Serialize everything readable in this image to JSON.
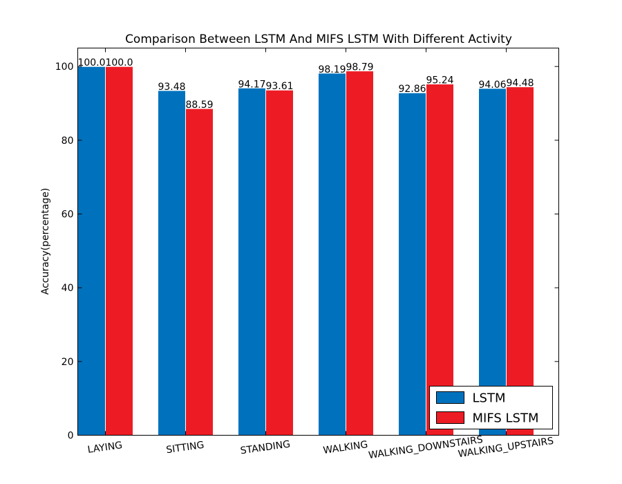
{
  "chart_data": {
    "type": "bar",
    "title": "Comparison Between LSTM And MIFS LSTM With Different Activity",
    "xlabel": "",
    "ylabel": "Accuracy(percentage)",
    "ylim": [
      0,
      105
    ],
    "yticks": [
      0,
      20,
      40,
      60,
      80,
      100
    ],
    "categories": [
      "LAYING",
      "SITTING",
      "STANDING",
      "WALKING",
      "WALKING_DOWNSTAIRS",
      "WALKING_UPSTAIRS"
    ],
    "series": [
      {
        "name": "LSTM",
        "color": "#0072bd",
        "values": [
          100.0,
          93.48,
          94.17,
          98.19,
          92.86,
          94.06
        ],
        "labels": [
          "100.0",
          "93.48",
          "94.17",
          "98.19",
          "92.86",
          "94.06"
        ]
      },
      {
        "name": "MIFS LSTM",
        "color": "#ed1c24",
        "values": [
          100.0,
          88.59,
          93.61,
          98.79,
          95.24,
          94.48
        ],
        "labels": [
          "100.0",
          "88.59",
          "93.61",
          "98.79",
          "95.24",
          "94.48"
        ]
      }
    ],
    "legend_position": "lower-right",
    "grid": false
  }
}
